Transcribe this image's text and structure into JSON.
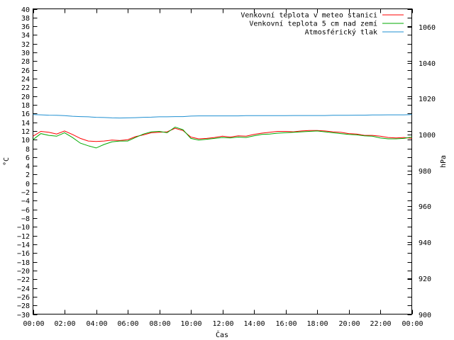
{
  "chart_data": {
    "type": "line",
    "title": "",
    "xlabel": "Čas",
    "ylabel": "°C",
    "y2label": "hPa",
    "x_ticks": [
      "00:00",
      "02:00",
      "04:00",
      "06:00",
      "08:00",
      "10:00",
      "12:00",
      "14:00",
      "16:00",
      "18:00",
      "20:00",
      "22:00",
      "00:00"
    ],
    "ylim": [
      -30,
      40
    ],
    "y_ticks": [
      40,
      38,
      36,
      34,
      32,
      30,
      28,
      26,
      24,
      22,
      20,
      18,
      16,
      14,
      12,
      10,
      8,
      6,
      4,
      2,
      0,
      -2,
      -4,
      -6,
      -8,
      -10,
      -12,
      -14,
      -16,
      -18,
      -20,
      -22,
      -24,
      -26,
      -28,
      -30
    ],
    "y2lim": [
      900,
      1070
    ],
    "y2_ticks": [
      1060,
      1040,
      1020,
      1000,
      980,
      960,
      940,
      920,
      900
    ],
    "grid": false,
    "legend_position": "top-right",
    "x_hours": [
      0,
      0.5,
      1,
      1.5,
      2,
      2.5,
      3,
      3.5,
      4,
      4.5,
      5,
      5.5,
      6,
      6.5,
      7,
      7.5,
      8,
      8.5,
      9,
      9.5,
      10,
      10.5,
      11,
      11.5,
      12,
      12.5,
      13,
      13.5,
      14,
      14.5,
      15,
      15.5,
      16,
      16.5,
      17,
      17.5,
      18,
      18.5,
      19,
      19.5,
      20,
      20.5,
      21,
      21.5,
      22,
      22.5,
      23,
      23.5,
      24
    ],
    "series": [
      {
        "name": "Venkovní teplota v meteo stanici",
        "axis": "left",
        "color": "#ff0000",
        "values": [
          10.8,
          11.9,
          11.7,
          11.3,
          12.0,
          11.2,
          10.3,
          9.7,
          9.6,
          9.7,
          9.9,
          9.8,
          10.0,
          10.7,
          11.1,
          11.6,
          11.7,
          11.8,
          12.6,
          12.1,
          10.6,
          10.2,
          10.3,
          10.5,
          10.8,
          10.6,
          10.9,
          10.8,
          11.2,
          11.5,
          11.7,
          11.9,
          11.9,
          11.8,
          12.0,
          12.1,
          12.1,
          12.0,
          11.8,
          11.7,
          11.4,
          11.3,
          11.0,
          11.0,
          10.8,
          10.5,
          10.4,
          10.5,
          10.3
        ]
      },
      {
        "name": "Venkovní teplota 5 cm nad zemí",
        "axis": "left",
        "color": "#00aa00",
        "values": [
          10.0,
          11.4,
          11.0,
          10.8,
          11.6,
          10.5,
          9.2,
          8.6,
          8.1,
          8.9,
          9.5,
          9.7,
          9.7,
          10.5,
          11.3,
          11.8,
          11.9,
          11.6,
          12.9,
          12.3,
          10.3,
          9.9,
          10.1,
          10.3,
          10.5,
          10.4,
          10.6,
          10.5,
          10.9,
          11.2,
          11.3,
          11.5,
          11.6,
          11.7,
          11.8,
          11.9,
          12.0,
          11.8,
          11.6,
          11.4,
          11.2,
          11.1,
          10.9,
          10.8,
          10.4,
          10.2,
          10.2,
          10.3,
          10.6
        ]
      },
      {
        "name": "Atmosférický tlak",
        "axis": "right",
        "color": "#1f8fd1",
        "values": [
          1011.1,
          1011.0,
          1010.8,
          1010.7,
          1010.5,
          1010.2,
          1010.0,
          1009.9,
          1009.6,
          1009.5,
          1009.3,
          1009.2,
          1009.3,
          1009.4,
          1009.6,
          1009.7,
          1009.9,
          1009.9,
          1010.0,
          1010.0,
          1010.3,
          1010.4,
          1010.4,
          1010.4,
          1010.4,
          1010.4,
          1010.4,
          1010.5,
          1010.5,
          1010.5,
          1010.5,
          1010.5,
          1010.5,
          1010.6,
          1010.6,
          1010.6,
          1010.6,
          1010.6,
          1010.7,
          1010.7,
          1010.7,
          1010.8,
          1010.8,
          1010.9,
          1010.9,
          1011.0,
          1011.0,
          1011.0,
          1011.1
        ]
      }
    ]
  }
}
